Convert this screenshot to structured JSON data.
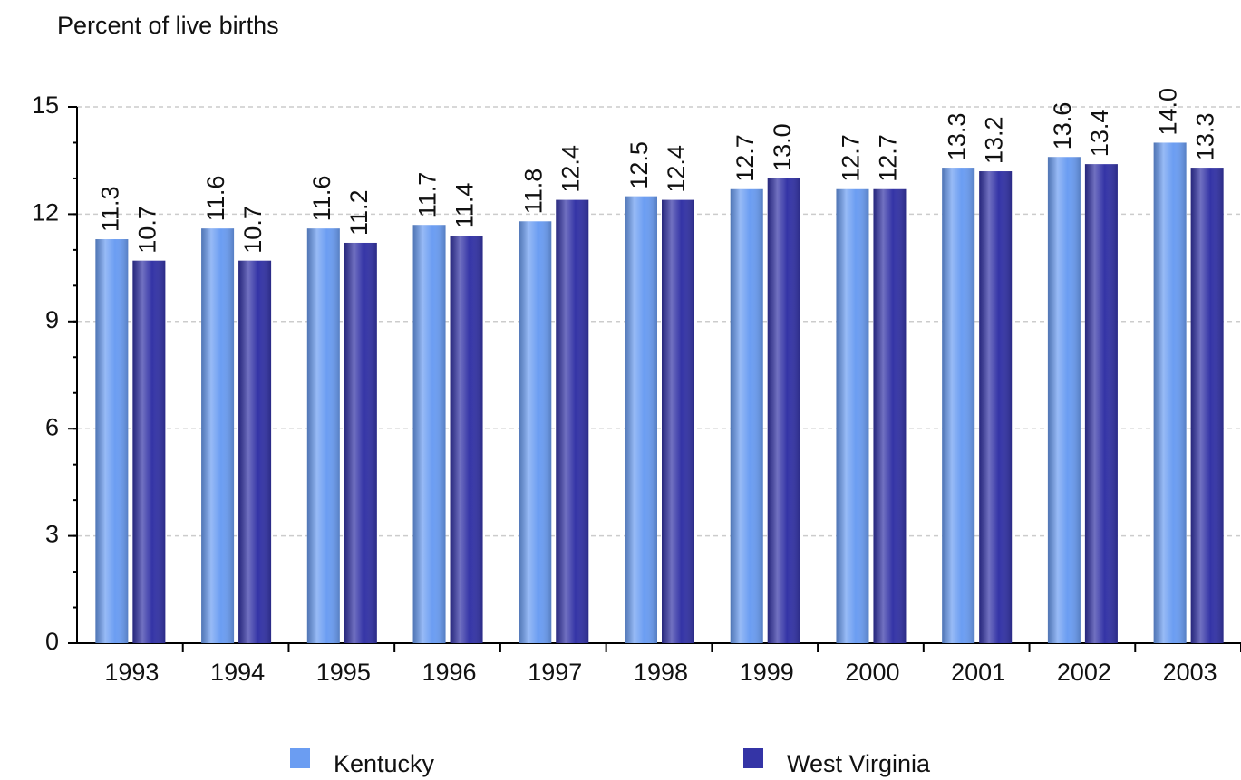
{
  "chart_data": {
    "type": "bar",
    "title": "Percent of live births",
    "categories": [
      "1993",
      "1994",
      "1995",
      "1996",
      "1997",
      "1998",
      "1999",
      "2000",
      "2001",
      "2002",
      "2003"
    ],
    "series": [
      {
        "name": "Kentucky",
        "color": "#6b9df2",
        "values": [
          11.3,
          11.6,
          11.6,
          11.7,
          11.8,
          12.5,
          12.7,
          12.7,
          13.3,
          13.6,
          14.0
        ],
        "value_labels": [
          "11.3",
          "11.6",
          "11.6",
          "11.7",
          "11.8",
          "12.5",
          "12.7",
          "12.7",
          "13.3",
          "13.6",
          "14.0"
        ]
      },
      {
        "name": "West Virginia",
        "color": "#3434a6",
        "values": [
          10.7,
          10.7,
          11.2,
          11.4,
          12.4,
          12.4,
          13.0,
          12.7,
          13.2,
          13.4,
          13.3
        ],
        "value_labels": [
          "10.7",
          "10.7",
          "11.2",
          "11.4",
          "12.4",
          "12.4",
          "13.0",
          "12.7",
          "13.2",
          "13.4",
          "13.3"
        ]
      }
    ],
    "ylim": [
      0,
      15
    ],
    "yticks": [
      0,
      3,
      6,
      9,
      12,
      15
    ],
    "grid": true,
    "legend": "bottom"
  }
}
